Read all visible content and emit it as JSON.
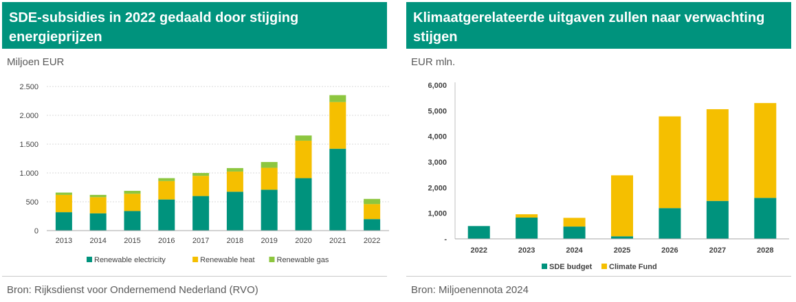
{
  "left": {
    "title": "SDE-subsidies in 2022 gedaald door stijging energieprijzen",
    "unit": "Miljoen EUR",
    "source": "Bron:  Rijksdienst voor Ondernemend Nederland (RVO)"
  },
  "right": {
    "title": "Klimaatgerelateerde uitgaven zullen naar verwachting stijgen",
    "unit": "EUR mln.",
    "source": "Bron: Miljoenennota 2024"
  },
  "colors": {
    "green": "#00937d",
    "yellow": "#f5bf00",
    "lightgreen": "#8dc63f",
    "header": "#00937d"
  },
  "chart_data": [
    {
      "type": "bar",
      "stacked": true,
      "title": "SDE-subsidies in 2022 gedaald door stijging energieprijzen",
      "ylabel": "Miljoen EUR",
      "ylim": [
        0,
        2500
      ],
      "yticks": [
        0,
        500,
        1000,
        1500,
        2000,
        2500
      ],
      "ytick_labels": [
        "0",
        "500",
        "1.000",
        "1.500",
        "2.000",
        "2.500"
      ],
      "categories": [
        "2013",
        "2014",
        "2015",
        "2016",
        "2017",
        "2018",
        "2019",
        "2020",
        "2021",
        "2022"
      ],
      "series": [
        {
          "name": "Renewable electricity",
          "color": "#00937d",
          "values": [
            320,
            300,
            340,
            540,
            600,
            675,
            710,
            910,
            1420,
            200
          ]
        },
        {
          "name": "Renewable heat",
          "color": "#f5bf00",
          "values": [
            300,
            280,
            300,
            320,
            350,
            350,
            380,
            650,
            810,
            260
          ]
        },
        {
          "name": "Renewable gas",
          "color": "#8dc63f",
          "values": [
            40,
            40,
            50,
            50,
            50,
            60,
            100,
            90,
            120,
            90
          ]
        }
      ],
      "legend": "bottom"
    },
    {
      "type": "bar",
      "stacked": true,
      "title": "Klimaatgerelateerde uitgaven zullen naar verwachting stijgen",
      "ylabel": "EUR mln.",
      "ylim": [
        0,
        6000
      ],
      "yticks": [
        0,
        1000,
        2000,
        3000,
        4000,
        5000,
        6000
      ],
      "ytick_labels": [
        "-",
        "1,000",
        "2,000",
        "3,000",
        "4,000",
        "5,000",
        "6,000"
      ],
      "categories": [
        "2022",
        "2023",
        "2024",
        "2025",
        "2026",
        "2027",
        "2028"
      ],
      "series": [
        {
          "name": "SDE budget",
          "color": "#00937d",
          "values": [
            500,
            830,
            480,
            100,
            1200,
            1480,
            1600
          ]
        },
        {
          "name": "Climate Fund",
          "color": "#f5bf00",
          "values": [
            0,
            130,
            340,
            2380,
            3580,
            3580,
            3700
          ]
        }
      ],
      "legend": "bottom"
    }
  ]
}
